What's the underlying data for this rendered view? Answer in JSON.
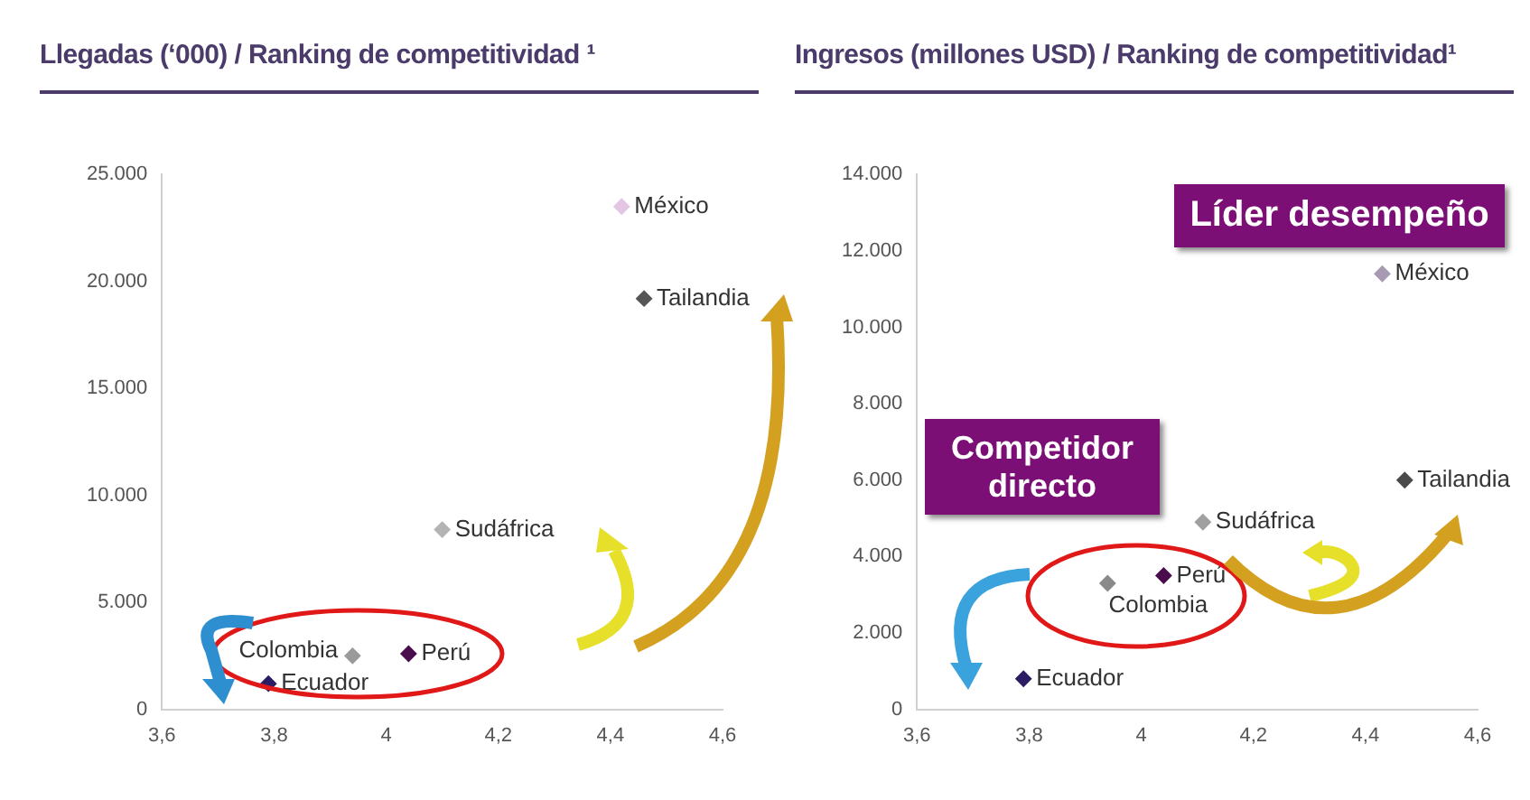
{
  "chart_data": [
    {
      "type": "scatter",
      "title": "Llegadas (‘000) / Ranking de competitividad ¹",
      "marker": "diamond",
      "grid": false,
      "legend": false,
      "xlim": [
        3.6,
        4.6
      ],
      "xticks": [
        {
          "value": 3.6,
          "label": "3,6"
        },
        {
          "value": 3.8,
          "label": "3,8"
        },
        4,
        {
          "value": 4.2,
          "label": "4,2"
        },
        {
          "value": 4.4,
          "label": "4,4"
        },
        {
          "value": 4.6,
          "label": "4,6"
        }
      ],
      "ylim": [
        0,
        25000
      ],
      "yticks": [
        0,
        {
          "value": 5000,
          "label": "5.000"
        },
        {
          "value": 10000,
          "label": "10.000"
        },
        {
          "value": 15000,
          "label": "15.000"
        },
        {
          "value": 20000,
          "label": "20.000"
        },
        {
          "value": 25000,
          "label": "25.000"
        }
      ],
      "series": [
        {
          "name": "México",
          "color": "#e2c6e4",
          "x": [
            4.42
          ],
          "values": [
            23500
          ]
        },
        {
          "name": "Tailandia",
          "color": "#555555",
          "x": [
            4.46
          ],
          "values": [
            19200
          ]
        },
        {
          "name": "Sudáfrica",
          "color": "#b4b4b4",
          "x": [
            4.1
          ],
          "values": [
            8400
          ]
        },
        {
          "name": "Colombia",
          "color": "#9a9a9a",
          "x": [
            3.94
          ],
          "values": [
            2500
          ]
        },
        {
          "name": "Perú",
          "color": "#4b0c4e",
          "x": [
            4.04
          ],
          "values": [
            2600
          ]
        },
        {
          "name": "Ecuador",
          "color": "#2b1c63",
          "x": [
            3.79
          ],
          "values": [
            1200
          ]
        }
      ]
    },
    {
      "type": "scatter",
      "title": "Ingresos (millones USD) / Ranking de competitividad¹",
      "marker": "diamond",
      "grid": false,
      "legend": false,
      "xlim": [
        3.6,
        4.6
      ],
      "xticks": [
        {
          "value": 3.6,
          "label": "3,6"
        },
        {
          "value": 3.8,
          "label": "3,8"
        },
        4,
        {
          "value": 4.2,
          "label": "4,2"
        },
        {
          "value": 4.4,
          "label": "4,4"
        },
        {
          "value": 4.6,
          "label": "4,6"
        }
      ],
      "ylim": [
        0,
        14000
      ],
      "yticks": [
        0,
        {
          "value": 2000,
          "label": "2.000"
        },
        {
          "value": 4000,
          "label": "4.000"
        },
        {
          "value": 6000,
          "label": "6.000"
        },
        {
          "value": 8000,
          "label": "8.000"
        },
        {
          "value": 10000,
          "label": "10.000"
        },
        {
          "value": 12000,
          "label": "12.000"
        },
        {
          "value": 14000,
          "label": "14.000"
        }
      ],
      "annotations": [
        "Líder desempeño",
        "Competidor directo"
      ],
      "series": [
        {
          "name": "México",
          "color": "#a89ab4",
          "x": [
            4.43
          ],
          "values": [
            11400
          ]
        },
        {
          "name": "Tailandia",
          "color": "#4a4a4a",
          "x": [
            4.47
          ],
          "values": [
            6000
          ]
        },
        {
          "name": "Sudáfrica",
          "color": "#a0a0a0",
          "x": [
            4.11
          ],
          "values": [
            4900
          ]
        },
        {
          "name": "Colombia",
          "color": "#8a8a8a",
          "x": [
            3.94
          ],
          "values": [
            3300
          ]
        },
        {
          "name": "Perú",
          "color": "#4b0c4e",
          "x": [
            4.04
          ],
          "values": [
            3500
          ]
        },
        {
          "name": "Ecuador",
          "color": "#2b1c63",
          "x": [
            3.79
          ],
          "values": [
            800
          ]
        }
      ]
    }
  ]
}
